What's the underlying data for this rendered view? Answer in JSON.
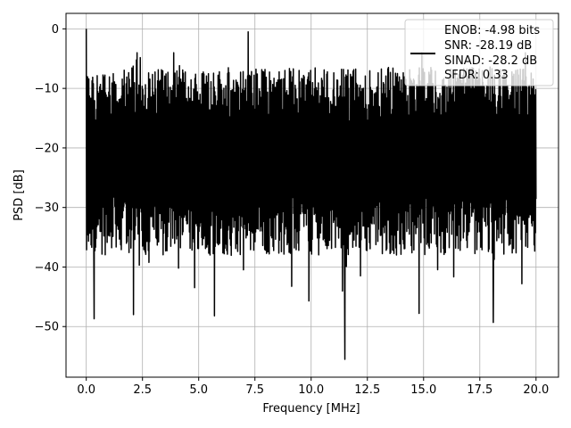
{
  "chart_data": {
    "type": "line",
    "xlabel": "Frequency [MHz]",
    "ylabel": "PSD [dB]",
    "xlim": [
      -0.9,
      21.0
    ],
    "ylim": [
      -58.5,
      2.6
    ],
    "x_ticks": [
      0.0,
      2.5,
      5.0,
      7.5,
      10.0,
      12.5,
      15.0,
      17.5,
      20.0
    ],
    "x_tick_labels": [
      "0.0",
      "2.5",
      "5.0",
      "7.5",
      "10.0",
      "12.5",
      "15.0",
      "17.5",
      "20.0"
    ],
    "y_ticks": [
      0,
      -10,
      -20,
      -30,
      -40,
      -50
    ],
    "y_tick_labels": [
      "0",
      "−10",
      "−20",
      "−30",
      "−40",
      "−50"
    ],
    "grid": true,
    "legend_position": "top-right",
    "legend_entries": [
      "ENOB: -4.98 bits",
      "SNR: -28.19 dB",
      "SINAD: -28.2 dB",
      "SFDR: 0.33"
    ],
    "series": [
      {
        "color": "#000000",
        "x_range": [
          0.0,
          20.0
        ],
        "noise_floor": {
          "upper_mean": -11,
          "lower_mean": -33,
          "lower_min": -49,
          "upper_max": -4
        },
        "peaks": [
          {
            "x": 0.0,
            "y": 0.0
          },
          {
            "x": 7.2,
            "y": -0.5
          },
          {
            "x": 11.5,
            "y": -55.5
          },
          {
            "x": 0.35,
            "y": -48.7
          },
          {
            "x": 2.1,
            "y": -48.0
          },
          {
            "x": 5.7,
            "y": -48.2
          },
          {
            "x": 14.8,
            "y": -47.8
          },
          {
            "x": 18.1,
            "y": -49.3
          },
          {
            "x": 9.9,
            "y": -45.7
          }
        ]
      }
    ]
  }
}
